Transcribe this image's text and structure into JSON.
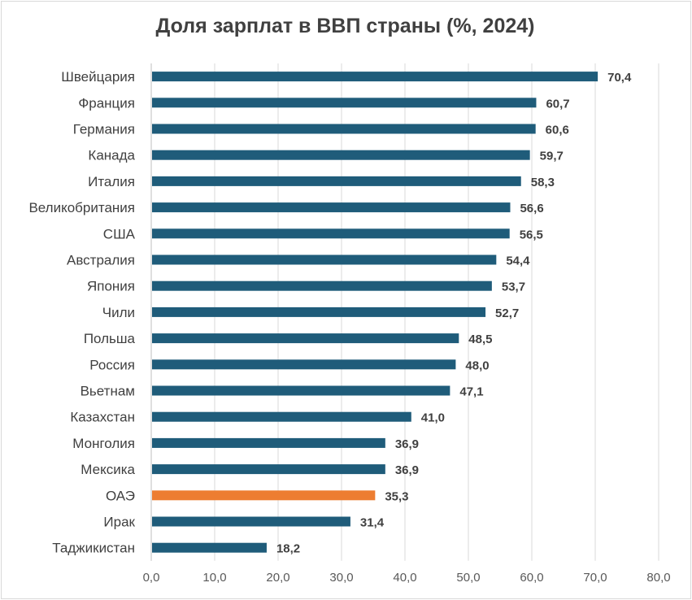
{
  "chart_data": {
    "type": "bar",
    "orientation": "horizontal",
    "title": "Доля зарплат в ВВП страны (%, 2024)",
    "categories": [
      "Швейцария",
      "Франция",
      "Германия",
      "Канада",
      "Италия",
      "Великобритания",
      "США",
      "Австралия",
      "Япония",
      "Чили",
      "Польша",
      "Россия",
      "Вьетнам",
      "Казахстан",
      "Монголия",
      "Мексика",
      "ОАЭ",
      "Ирак",
      "Таджикистан"
    ],
    "values": [
      70.4,
      60.7,
      60.6,
      59.7,
      58.3,
      56.6,
      56.5,
      54.4,
      53.7,
      52.7,
      48.5,
      48.0,
      47.1,
      41.0,
      36.9,
      36.9,
      35.3,
      31.4,
      18.2
    ],
    "value_labels": [
      "70,4",
      "60,7",
      "60,6",
      "59,7",
      "58,3",
      "56,6",
      "56,5",
      "54,4",
      "53,7",
      "52,7",
      "48,5",
      "48,0",
      "47,1",
      "41,0",
      "36,9",
      "36,9",
      "35,3",
      "31,4",
      "18,2"
    ],
    "xlim": [
      0,
      80
    ],
    "x_ticks": [
      "0,0",
      "10,0",
      "20,0",
      "30,0",
      "40,0",
      "50,0",
      "60,0",
      "70,0",
      "80,0"
    ],
    "xlabel": "",
    "ylabel": "",
    "grid": "vertical",
    "legend": "none",
    "colors": {
      "default": "#1f5c7a",
      "highlight": "#ed7d31",
      "highlight_category": "ОАЭ",
      "grid": "#d9d9d9"
    }
  }
}
